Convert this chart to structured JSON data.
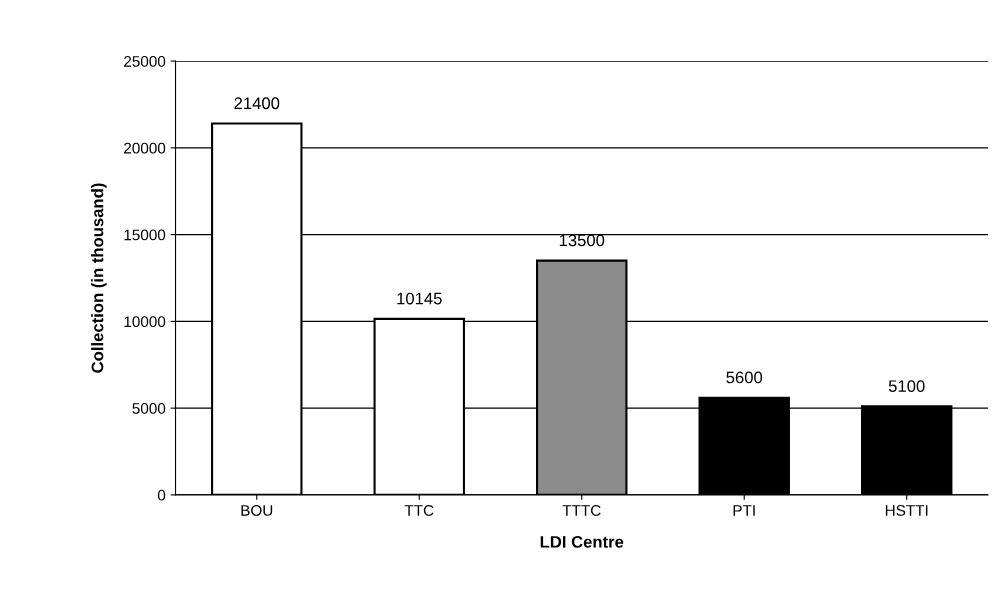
{
  "chart_data": {
    "type": "bar",
    "xlabel": "LDI Centre",
    "ylabel": "Collection (in thousand)",
    "categories": [
      "BOU",
      "TTC",
      "TTTC",
      "PTI",
      "HSTTI"
    ],
    "values": [
      21400,
      10145,
      13500,
      5600,
      5100
    ],
    "colors": [
      "#ffffff",
      "#ffffff",
      "#8c8c8c",
      "#000000",
      "#000000"
    ],
    "ylim": [
      0,
      25000
    ],
    "yticks": [
      0,
      5000,
      10000,
      15000,
      20000,
      25000
    ],
    "grid": "y",
    "data_labels": true
  }
}
